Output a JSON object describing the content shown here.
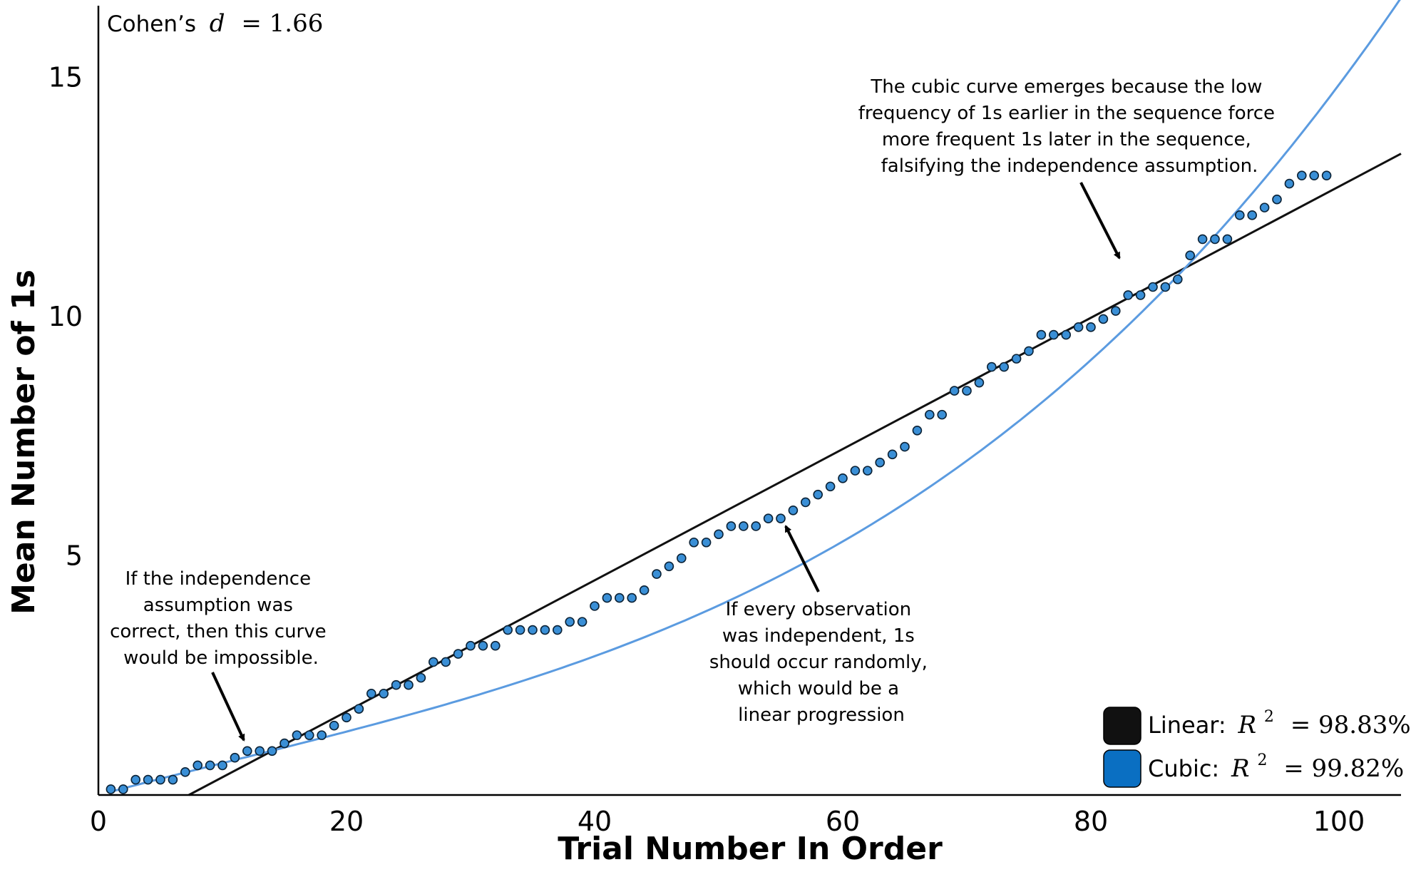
{
  "chart_data": {
    "type": "scatter",
    "xlabel": "Trial Number In Order",
    "ylabel": "Mean Number of 1s",
    "xlim": [
      0,
      105
    ],
    "ylim": [
      0,
      16.5
    ],
    "xticks": [
      0,
      20,
      40,
      60,
      80,
      100
    ],
    "yticks": [
      5,
      10,
      15
    ],
    "effect_size": {
      "label": "Cohen’s",
      "symbol": "d",
      "value": "= 1.66"
    },
    "colors": {
      "points": "#3a8fd6",
      "point_outline": "#0b2236",
      "linear": "#111111",
      "cubic": "#5b9be0",
      "legend_cubic": "#0a6fc2"
    },
    "points": {
      "x": [
        1,
        2,
        3,
        4,
        5,
        6,
        7,
        8,
        9,
        10,
        11,
        12,
        13,
        14,
        15,
        16,
        17,
        18,
        19,
        20,
        21,
        22,
        23,
        24,
        25,
        26,
        27,
        28,
        29,
        30,
        31,
        32,
        33,
        34,
        35,
        36,
        37,
        38,
        39,
        40,
        41,
        42,
        43,
        44,
        45,
        46,
        47,
        48,
        49,
        50,
        51,
        52,
        53,
        54,
        55,
        56,
        57,
        58,
        59,
        60,
        61,
        62,
        63,
        64,
        65,
        66,
        67,
        68,
        69,
        70,
        71,
        72,
        73,
        74,
        75,
        76,
        77,
        78,
        79,
        80,
        81,
        82,
        83,
        84,
        85,
        86,
        87,
        88,
        89,
        90,
        91,
        92,
        93,
        94,
        95,
        96,
        97,
        98,
        99
      ],
      "y": [
        0.12,
        0.12,
        0.32,
        0.32,
        0.32,
        0.32,
        0.48,
        0.62,
        0.62,
        0.62,
        0.78,
        0.92,
        0.92,
        0.92,
        1.08,
        1.25,
        1.25,
        1.25,
        1.45,
        1.62,
        1.8,
        2.12,
        2.12,
        2.3,
        2.3,
        2.45,
        2.78,
        2.78,
        2.95,
        3.12,
        3.12,
        3.12,
        3.45,
        3.45,
        3.45,
        3.45,
        3.45,
        3.62,
        3.62,
        3.95,
        4.12,
        4.12,
        4.12,
        4.28,
        4.62,
        4.78,
        4.95,
        5.28,
        5.28,
        5.45,
        5.62,
        5.62,
        5.62,
        5.78,
        5.78,
        5.95,
        6.12,
        6.28,
        6.45,
        6.62,
        6.78,
        6.78,
        6.95,
        7.12,
        7.28,
        7.62,
        7.95,
        7.95,
        8.45,
        8.45,
        8.62,
        8.95,
        8.95,
        9.12,
        9.28,
        9.62,
        9.62,
        9.62,
        9.78,
        9.78,
        9.95,
        10.12,
        10.45,
        10.45,
        10.62,
        10.62,
        10.78,
        11.28,
        11.62,
        11.62,
        11.62,
        12.12,
        12.12,
        12.28,
        12.45,
        12.78,
        12.95,
        12.95,
        12.95
      ]
    },
    "linear_fit": {
      "slope": 0.1372,
      "intercept": -1.0
    },
    "cubic_fit": {
      "a": 1.19e-05,
      "b": -0.0004,
      "c": 0.0695,
      "d": 0.0
    },
    "legend": {
      "position": "bottom-right",
      "entries": [
        {
          "label": "Linear:",
          "stat": "R",
          "exp": "2",
          "value": "= 98.83%"
        },
        {
          "label": "Cubic:",
          "stat": "R",
          "exp": "2",
          "value": "= 99.82%"
        }
      ]
    },
    "annotations": [
      {
        "lines": [
          "If the independence",
          "assumption was",
          "correct, then this curve",
          "would be impossible."
        ]
      },
      {
        "lines": [
          "If every observation",
          "was independent, 1s",
          "should occur randomly,",
          "which would be a",
          "linear progression"
        ]
      },
      {
        "lines": [
          "The cubic curve emerges because the low",
          "frequency of 1s earlier in the sequence force",
          "more frequent 1s later in the sequence,",
          "falsifying the independence assumption."
        ]
      }
    ]
  }
}
